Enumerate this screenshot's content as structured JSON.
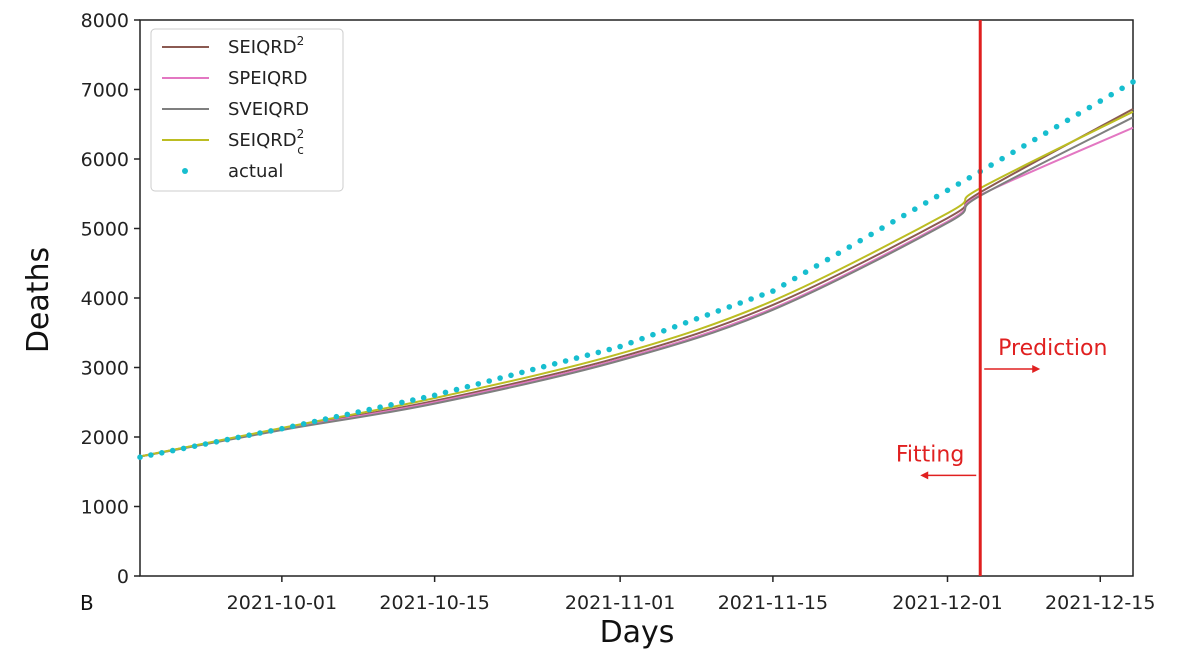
{
  "chart_data": {
    "type": "line",
    "xlabel": "Days",
    "ylabel": "Deaths",
    "panel_label": "B",
    "x_ticks": [
      "2021-10-01",
      "2021-10-15",
      "2021-11-01",
      "2021-11-15",
      "2021-12-01",
      "2021-12-15"
    ],
    "y_ticks": [
      "0",
      "1000",
      "2000",
      "3000",
      "4000",
      "5000",
      "6000",
      "7000",
      "8000"
    ],
    "xlim": [
      "2021-09-18",
      "2021-12-18"
    ],
    "ylim": [
      0,
      8000
    ],
    "grid": false,
    "legend_position": "top-left",
    "series": [
      {
        "name": "SEIQRD",
        "name_sup": "2",
        "name_sub": "",
        "color": "#8b5a52",
        "kind": "line",
        "x": [
          "2021-09-18",
          "2021-10-01",
          "2021-10-15",
          "2021-11-01",
          "2021-11-15",
          "2021-12-01",
          "2021-12-04",
          "2021-12-18"
        ],
        "y": [
          1720,
          2120,
          2520,
          3150,
          3900,
          5150,
          5520,
          6720
        ]
      },
      {
        "name": "SPEIQRD",
        "name_sup": "",
        "name_sub": "",
        "color": "#e377c2",
        "kind": "line",
        "x": [
          "2021-09-18",
          "2021-10-01",
          "2021-10-15",
          "2021-11-01",
          "2021-11-15",
          "2021-12-01",
          "2021-12-04",
          "2021-12-18"
        ],
        "y": [
          1720,
          2110,
          2500,
          3120,
          3850,
          5100,
          5480,
          6450
        ]
      },
      {
        "name": "SVEIQRD",
        "name_sup": "",
        "name_sub": "",
        "color": "#7f7f7f",
        "kind": "line",
        "x": [
          "2021-09-18",
          "2021-10-01",
          "2021-10-15",
          "2021-11-01",
          "2021-11-15",
          "2021-12-01",
          "2021-12-04",
          "2021-12-18"
        ],
        "y": [
          1720,
          2100,
          2480,
          3100,
          3830,
          5080,
          5470,
          6600
        ]
      },
      {
        "name": "SEIQRD",
        "name_sup": "2",
        "name_sub": "c",
        "color": "#bcbd22",
        "kind": "line",
        "x": [
          "2021-09-18",
          "2021-10-01",
          "2021-10-15",
          "2021-11-01",
          "2021-11-15",
          "2021-12-01",
          "2021-12-04",
          "2021-12-18"
        ],
        "y": [
          1720,
          2130,
          2560,
          3200,
          3960,
          5220,
          5580,
          6680
        ]
      },
      {
        "name": "actual",
        "name_sup": "",
        "name_sub": "",
        "color": "#17becf",
        "kind": "dots",
        "x": [
          "2021-09-18",
          "2021-10-01",
          "2021-10-15",
          "2021-11-01",
          "2021-11-15",
          "2021-12-01",
          "2021-12-04",
          "2021-12-18"
        ],
        "y": [
          1710,
          2120,
          2600,
          3300,
          4100,
          5550,
          5820,
          7110
        ]
      }
    ],
    "divider": {
      "x": "2021-12-04",
      "color": "#e02020"
    },
    "annotations": [
      {
        "text": "Prediction",
        "x": "2021-12-05",
        "y": 3180,
        "anchor": "start",
        "arrow": "right"
      },
      {
        "text": "Fitting",
        "x": "2021-12-03",
        "y": 1650,
        "anchor": "end",
        "arrow": "left"
      }
    ]
  }
}
